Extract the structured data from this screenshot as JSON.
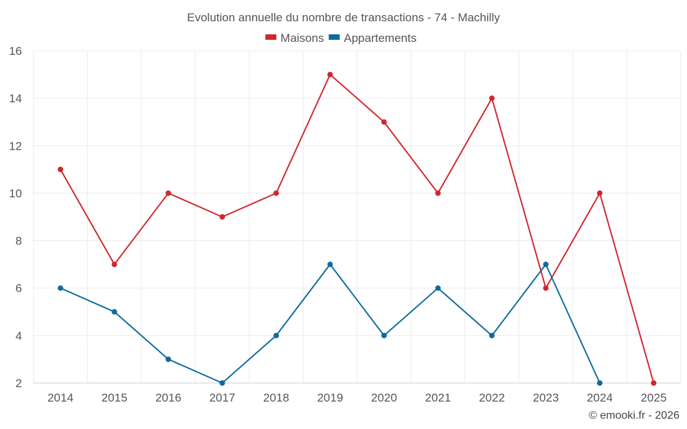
{
  "chart_data": {
    "type": "line",
    "title": "Evolution annuelle du nombre de transactions - 74 - Machilly",
    "categories": [
      "2014",
      "2015",
      "2016",
      "2017",
      "2018",
      "2019",
      "2020",
      "2021",
      "2022",
      "2023",
      "2024",
      "2025"
    ],
    "series": [
      {
        "name": "Maisons",
        "color": "#d0282e",
        "values": [
          11,
          7,
          10,
          9,
          10,
          15,
          13,
          10,
          14,
          6,
          10,
          2
        ]
      },
      {
        "name": "Appartements",
        "color": "#0f6b9e",
        "values": [
          6,
          5,
          3,
          2,
          4,
          7,
          4,
          6,
          4,
          7,
          2,
          null
        ]
      }
    ],
    "xlabel": "",
    "ylabel": "",
    "ylim": [
      2,
      16
    ],
    "yticks": [
      2,
      4,
      6,
      8,
      10,
      12,
      14,
      16
    ],
    "grid": true,
    "legend": "top-center"
  },
  "credit": "© emooki.fr - 2026"
}
